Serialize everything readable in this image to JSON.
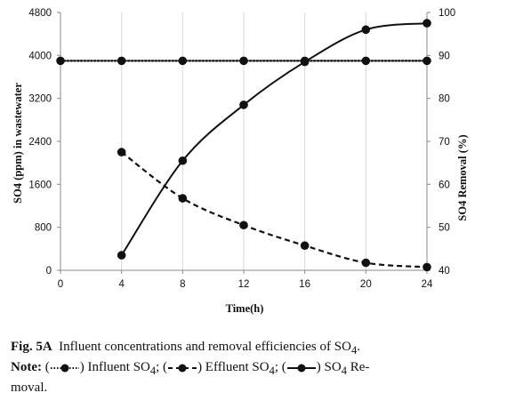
{
  "chart_data": {
    "type": "line",
    "x": [
      0,
      4,
      8,
      12,
      16,
      20,
      24
    ],
    "x_ticks": [
      "0",
      "4",
      "8",
      "12",
      "16",
      "20",
      "24"
    ],
    "xlabel": "Time(h)",
    "xlim": [
      0,
      24
    ],
    "ylabel_left": "SO4 (ppm) in wastewater",
    "ylim_left": [
      0,
      4800
    ],
    "yticks_left": [
      "0",
      "800",
      "1600",
      "2400",
      "3200",
      "4000",
      "4800"
    ],
    "ylabel_right": "SO4 Removal (%)",
    "ylim_right": [
      40,
      100
    ],
    "yticks_right": [
      "40",
      "50",
      "60",
      "70",
      "80",
      "90",
      "100"
    ],
    "grid": "vertical",
    "legend": "caption",
    "series": [
      {
        "name": "Influent SO4",
        "axis": "left",
        "style": "dotted",
        "x": [
          0,
          4,
          8,
          12,
          16,
          20,
          24
        ],
        "values": [
          3900,
          3900,
          3900,
          3900,
          3900,
          3900,
          3900
        ]
      },
      {
        "name": "Effluent SO4",
        "axis": "left",
        "style": "dashed",
        "x": [
          4,
          8,
          12,
          16,
          20,
          24
        ],
        "values": [
          2200,
          1340,
          840,
          460,
          140,
          60
        ]
      },
      {
        "name": "SO4 Removal",
        "axis": "right",
        "style": "solid",
        "x": [
          4,
          8,
          12,
          16,
          20,
          24
        ],
        "values": [
          43.5,
          65.5,
          78.5,
          88.5,
          96,
          97.5
        ]
      }
    ],
    "colors": {
      "ink": "#111111",
      "grid": "#d9d9d9",
      "axis": "#888888"
    }
  },
  "caption": {
    "fig_label": "Fig. 5A",
    "title_text": "Influent concentrations and removal efficiencies of SO",
    "title_sub": "4",
    "title_end": ".",
    "note_label": "Note:",
    "open_paren": "(",
    "close_influent": ") Influent SO",
    "influent_sub": "4",
    "sep1": "; (",
    "close_effluent": ") Effluent SO",
    "effluent_sub": "4",
    "sep2": "; (",
    "close_removal": ") SO",
    "removal_sub": "4",
    "removal_rest": " Re-",
    "line3": "moval."
  }
}
